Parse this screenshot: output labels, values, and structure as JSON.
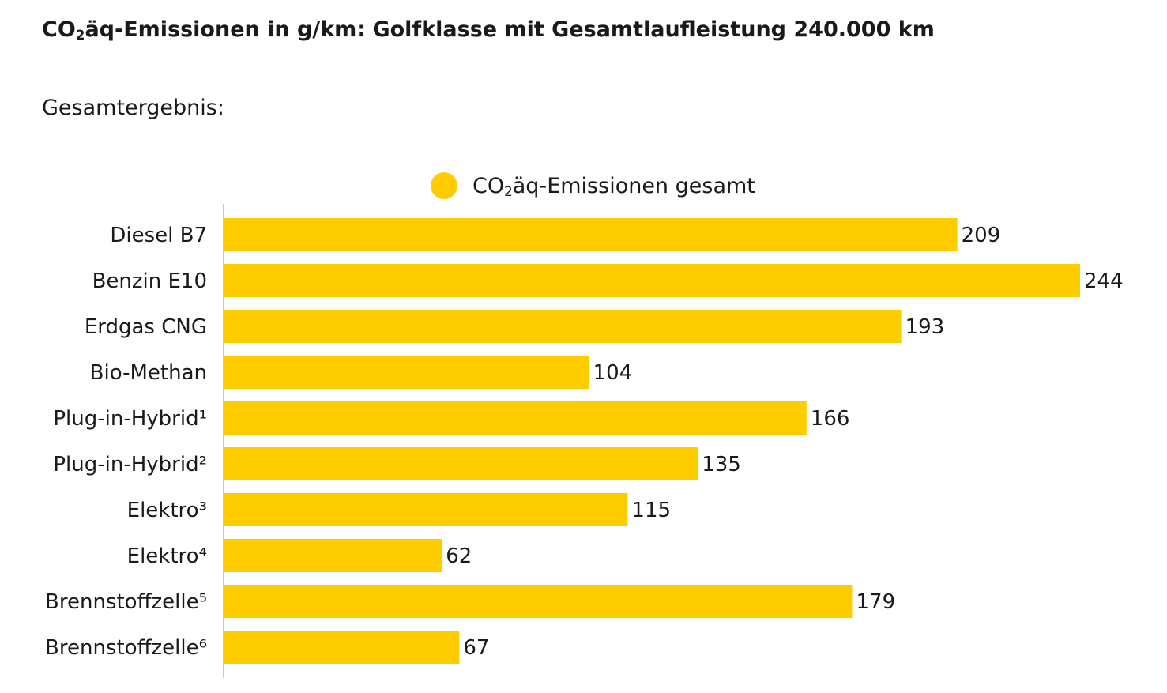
{
  "title_prefix": "CO",
  "title_sub": "2",
  "title_suffix": "äq-Emissionen in g/km: Golfklasse mit Gesamtlaufleistung 240.000 km",
  "subtitle": "Gesamtergebnis:",
  "colors": {
    "bar": "#ffcc00",
    "axis": "#c8c8c8",
    "text": "#1a1a1a"
  },
  "chart_data": {
    "type": "bar",
    "orientation": "horizontal",
    "title": "CO₂äq-Emissionen in g/km: Golfklasse mit Gesamtlaufleistung 240.000 km",
    "subtitle": "Gesamtergebnis:",
    "legend": {
      "placement": "top-center",
      "entries": [
        {
          "prefix": "CO",
          "sub": "2",
          "suffix": "äq-Emissionen gesamt"
        }
      ]
    },
    "categories": [
      "Diesel B7",
      "Benzin E10",
      "Erdgas CNG",
      "Bio-Methan",
      "Plug-in-Hybrid¹",
      "Plug-in-Hybrid²",
      "Elektro³",
      "Elektro⁴",
      "Brennstoffzelle⁵",
      "Brennstoffzelle⁶"
    ],
    "series": [
      {
        "name": "CO₂äq-Emissionen gesamt",
        "values": [
          209,
          244,
          193,
          104,
          166,
          135,
          115,
          62,
          179,
          67
        ]
      }
    ],
    "xlim": [
      0,
      244
    ],
    "xlabel": "",
    "ylabel": "",
    "grid": false
  }
}
